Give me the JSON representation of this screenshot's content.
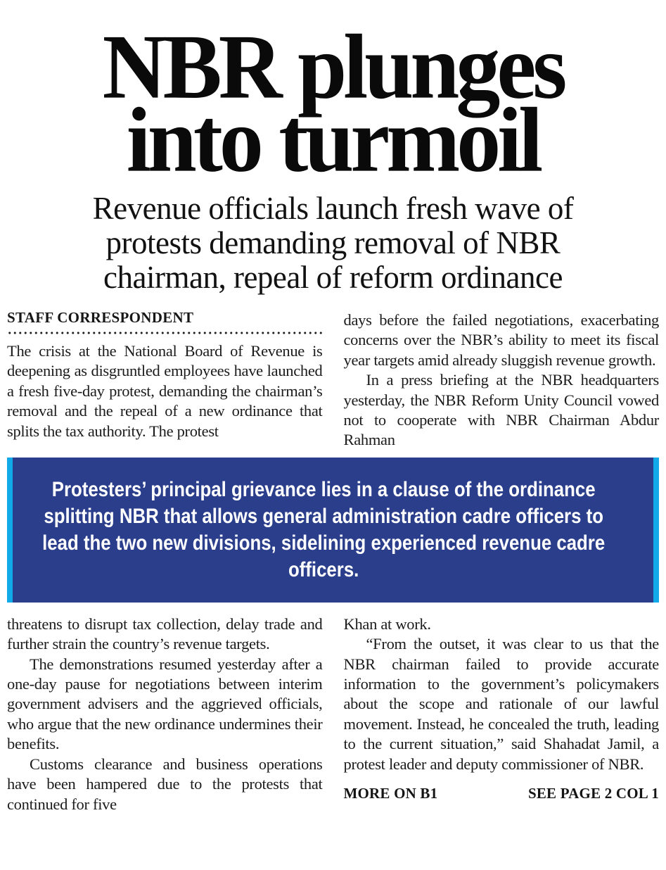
{
  "colors": {
    "ink": "#1b1b1b",
    "navy": "#2b3e8c",
    "cyan": "#12a9e8"
  },
  "headline": {
    "line1": "NBR plunges",
    "line2": "into turmoil"
  },
  "subheadline": {
    "line1": "Revenue officials launch fresh wave of",
    "line2": "protests demanding removal of NBR",
    "line3": "chairman, repeal of reform ordinance"
  },
  "byline": "STAFF CORRESPONDENT",
  "article": {
    "col1_top": [
      "The crisis at the National Board of Revenue is deepening as disgruntled employees have launched a fresh five-day protest, demanding the chairman’s removal and the repeal of a new ordinance that splits the tax authority. The protest"
    ],
    "col2_top": [
      "days before the failed negotiations, exacerbating concerns over the NBR’s ability to meet its fiscal year targets amid already sluggish revenue growth.",
      "In a press briefing at the NBR headquarters yesterday, the NBR Reform Unity Council vowed not to cooperate with NBR Chairman Abdur Rahman"
    ],
    "col1_bottom": [
      "threatens to disrupt tax collection, delay trade and further strain the country’s revenue targets.",
      "The demonstrations resumed yesterday after a one-day pause for negotiations between interim government advisers and the aggrieved officials, who argue that the new ordinance undermines their benefits.",
      "Customs clearance and business operations have been hampered due to the protests that continued for five"
    ],
    "col2_bottom": [
      "Khan at work.",
      "“From the outset, it was clear to us that the NBR chairman failed to provide accurate information to the government’s policymakers about the scope and rationale of our lawful movement. Instead, he concealed the truth, leading to the current situation,” said Shahadat Jamil, a protest leader and deputy commissioner of NBR."
    ]
  },
  "pull_quote": {
    "text": "Protesters’ principal grievance lies in a clause of the ordinance splitting NBR that allows general administration cadre officers to lead the two new divisions, sidelining experienced revenue cadre officers."
  },
  "footer": {
    "more_on": "MORE ON B1",
    "see_page": "SEE PAGE 2 COL 1"
  }
}
